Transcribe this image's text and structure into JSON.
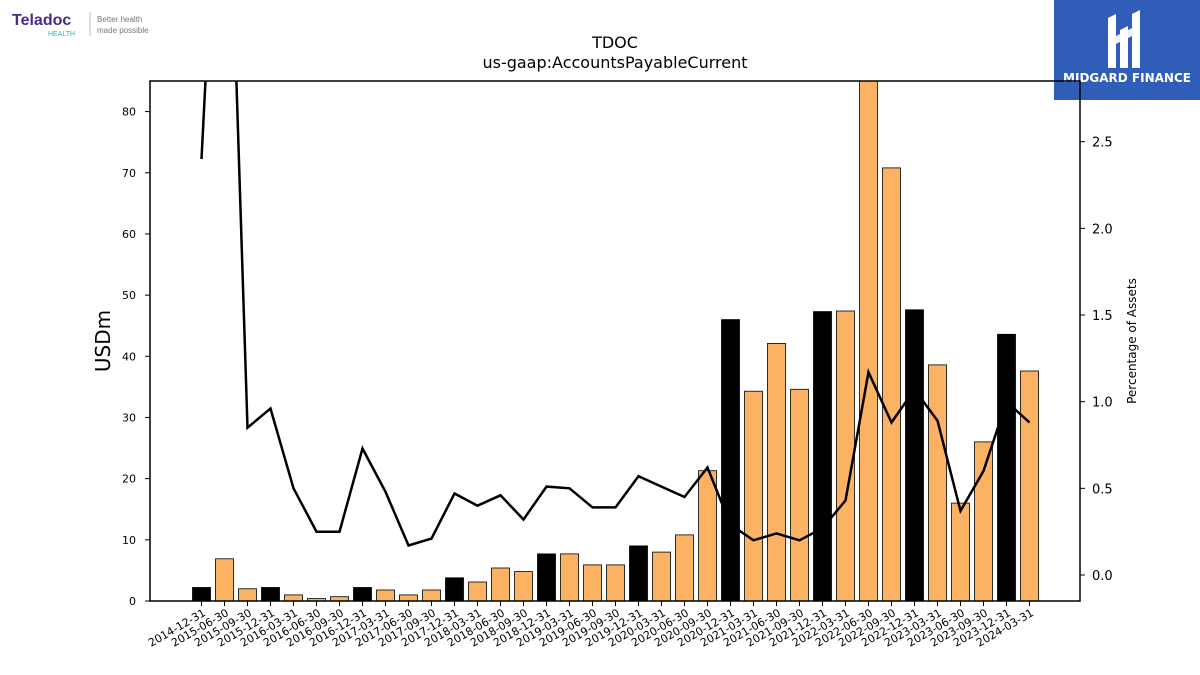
{
  "logos": {
    "left_brand": "Teladoc",
    "left_sub": "HEALTH",
    "left_tagline_1": "Better health",
    "left_tagline_2": "made possible",
    "right_brand": "MIDGARD FINANCE"
  },
  "colors": {
    "bar_highlight": "#000000",
    "bar_normal": "#fbb363",
    "line": "#000000",
    "logo_right_bg": "#2f5db7",
    "teladoc_purple": "#4b2a8a",
    "teladoc_teal": "#1fb6c9"
  },
  "chart_data": {
    "type": "bar",
    "title": "TDOC",
    "subtitle": "us-gaap:AccountsPayableCurrent",
    "ylabel": "USDm",
    "ylabel_right": "Percentage of Assets",
    "ylim": [
      0,
      85
    ],
    "ylim_right": [
      -0.15,
      2.85
    ],
    "yticks": [
      0,
      10,
      20,
      30,
      40,
      50,
      60,
      70,
      80
    ],
    "yticks_right": [
      0.0,
      0.5,
      1.0,
      1.5,
      2.0,
      2.5
    ],
    "yticks_right_labels": [
      "0.0",
      "0.5",
      "1.0",
      "1.5",
      "2.0",
      "2.5"
    ],
    "categories": [
      "2014-12-31",
      "2015-06-30",
      "2015-09-30",
      "2015-12-31",
      "2016-03-31",
      "2016-06-30",
      "2016-09-30",
      "2016-12-31",
      "2017-03-31",
      "2017-06-30",
      "2017-09-30",
      "2017-12-31",
      "2018-03-31",
      "2018-06-30",
      "2018-09-30",
      "2018-12-31",
      "2019-03-31",
      "2019-06-30",
      "2019-09-30",
      "2019-12-31",
      "2020-03-31",
      "2020-06-30",
      "2020-09-30",
      "2020-12-31",
      "2021-03-31",
      "2021-06-30",
      "2021-09-30",
      "2021-12-31",
      "2022-03-31",
      "2022-06-30",
      "2022-09-30",
      "2022-12-31",
      "2023-03-31",
      "2023-06-30",
      "2023-09-30",
      "2023-12-31",
      "2024-03-31"
    ],
    "series": [
      {
        "kind": "bar",
        "values": [
          2.2,
          6.9,
          2.0,
          2.2,
          1.0,
          0.4,
          0.7,
          2.2,
          1.8,
          1.0,
          1.8,
          3.8,
          3.1,
          5.4,
          4.8,
          7.7,
          7.7,
          5.9,
          5.9,
          9.0,
          8.0,
          10.8,
          21.3,
          46.0,
          34.3,
          42.1,
          34.6,
          47.3,
          47.4,
          85.0,
          70.8,
          47.6,
          38.6,
          16.0,
          26.0,
          43.6,
          37.6
        ],
        "highlight": [
          true,
          false,
          false,
          true,
          false,
          false,
          false,
          true,
          false,
          false,
          false,
          true,
          false,
          false,
          false,
          true,
          false,
          false,
          false,
          true,
          false,
          false,
          false,
          true,
          false,
          false,
          false,
          true,
          false,
          false,
          false,
          true,
          false,
          false,
          false,
          true,
          false
        ]
      },
      {
        "kind": "line",
        "axis": "right",
        "values": [
          2.4,
          5.0,
          0.85,
          0.96,
          0.5,
          0.25,
          0.25,
          0.73,
          0.48,
          0.17,
          0.21,
          0.47,
          0.4,
          0.46,
          0.32,
          0.51,
          0.5,
          0.39,
          0.39,
          0.57,
          0.51,
          0.45,
          0.62,
          0.29,
          0.2,
          0.24,
          0.2,
          0.27,
          0.43,
          1.17,
          0.88,
          1.07,
          0.89,
          0.37,
          0.6,
          1.0,
          0.88
        ]
      }
    ]
  }
}
